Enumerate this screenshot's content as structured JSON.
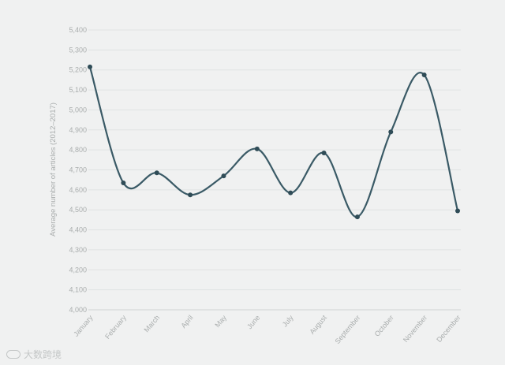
{
  "chart_data": {
    "type": "line",
    "smooth": true,
    "categories": [
      "January",
      "February",
      "March",
      "April",
      "May",
      "June",
      "July",
      "August",
      "September",
      "October",
      "November",
      "December"
    ],
    "series": [
      {
        "values": [
          5215,
          4635,
          4685,
          4575,
          4670,
          4805,
          4585,
          4785,
          4465,
          4890,
          5175,
          4495
        ]
      }
    ],
    "ylabel": "Average number of articles (2012–2017)",
    "xlabel": "",
    "title": "",
    "ylim": [
      4000,
      5400
    ],
    "ytick_step": 100,
    "ytick_labels": [
      "4,000",
      "4,100",
      "4,200",
      "4,300",
      "4,400",
      "4,500",
      "4,600",
      "4,700",
      "4,800",
      "4,900",
      "5,000",
      "5,100",
      "5,200",
      "5,300",
      "5,400"
    ],
    "grid": true,
    "legend": "none",
    "colors": {
      "line": "#3a5a66",
      "marker": "#2f4c57",
      "grid": "#dfe2e2",
      "background": "#f0f1f1",
      "text": "#a9adad"
    }
  },
  "watermark": {
    "icon": "wechat-logo-icon",
    "text": "大数跨境"
  }
}
